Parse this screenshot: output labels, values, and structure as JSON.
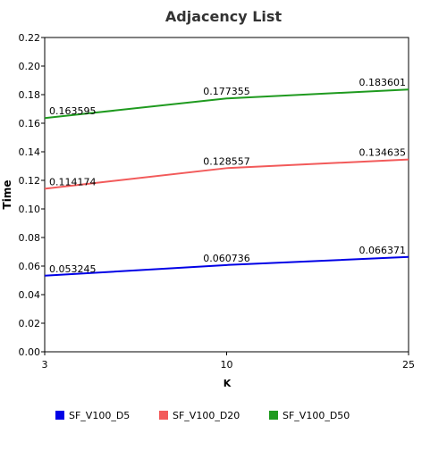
{
  "chart_data": {
    "type": "line",
    "title": "Adjacency List",
    "xlabel": "K",
    "ylabel": "Time",
    "categories": [
      "3",
      "10",
      "25"
    ],
    "ylim": [
      0,
      0.22
    ],
    "yticks": [
      "0.00",
      "0.02",
      "0.04",
      "0.06",
      "0.08",
      "0.10",
      "0.12",
      "0.14",
      "0.16",
      "0.18",
      "0.20",
      "0.22"
    ],
    "grid": false,
    "legend_position": "bottom",
    "series": [
      {
        "name": "SF_V100_D5",
        "color": "#0000e6",
        "values": [
          0.053245,
          0.060736,
          0.066371
        ],
        "labels": [
          "0.053245",
          "0.060736",
          "0.066371"
        ]
      },
      {
        "name": "SF_V100_D20",
        "color": "#f25a5a",
        "values": [
          0.114174,
          0.128557,
          0.134635
        ],
        "labels": [
          "0.114174",
          "0.128557",
          "0.134635"
        ]
      },
      {
        "name": "SF_V100_D50",
        "color": "#1f9a1f",
        "values": [
          0.163595,
          0.177355,
          0.183601
        ],
        "labels": [
          "0.163595",
          "0.177355",
          "0.183601"
        ]
      }
    ]
  }
}
